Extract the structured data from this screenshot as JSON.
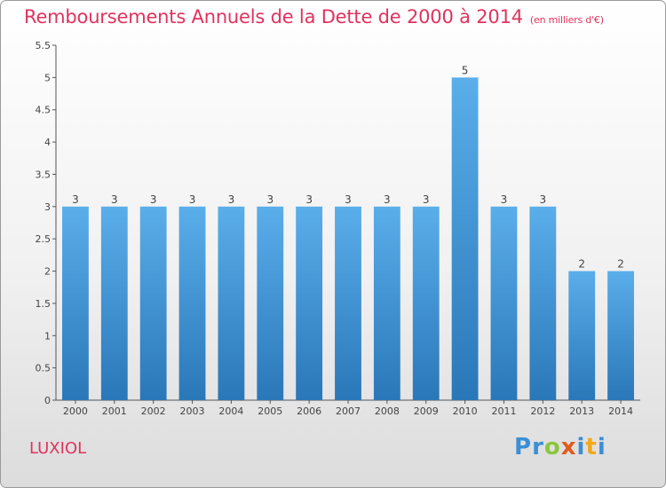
{
  "title": "Remboursements Annuels de la Dette de 2000 à 2014",
  "unit": "(en milliers d'€)",
  "commune": "LUXIOL",
  "logo": [
    "P",
    "r",
    "o",
    "x",
    "i",
    "t",
    "i"
  ],
  "colors": {
    "title": "#e0335e",
    "bar_top": "#5aaeea",
    "bar_bottom": "#2a77b8",
    "logo": [
      "#3a8fd6",
      "#3a8fd6",
      "#8cc63f",
      "#e25a1c",
      "#3a8fd6",
      "#f2a81d",
      "#3a8fd6"
    ]
  },
  "chart_data": {
    "type": "bar",
    "title": "Remboursements Annuels de la Dette de 2000 à 2014",
    "xlabel": "",
    "ylabel": "",
    "categories": [
      "2000",
      "2001",
      "2002",
      "2003",
      "2004",
      "2005",
      "2006",
      "2007",
      "2008",
      "2009",
      "2010",
      "2011",
      "2012",
      "2013",
      "2014"
    ],
    "values": [
      3,
      3,
      3,
      3,
      3,
      3,
      3,
      3,
      3,
      3,
      5,
      3,
      3,
      2,
      2
    ],
    "ylim": [
      0,
      5.5
    ],
    "yticks": [
      "0",
      "0.5",
      "1",
      "1.5",
      "2",
      "2.5",
      "3",
      "3.5",
      "4",
      "4.5",
      "5",
      "5.5"
    ],
    "grid": false
  }
}
